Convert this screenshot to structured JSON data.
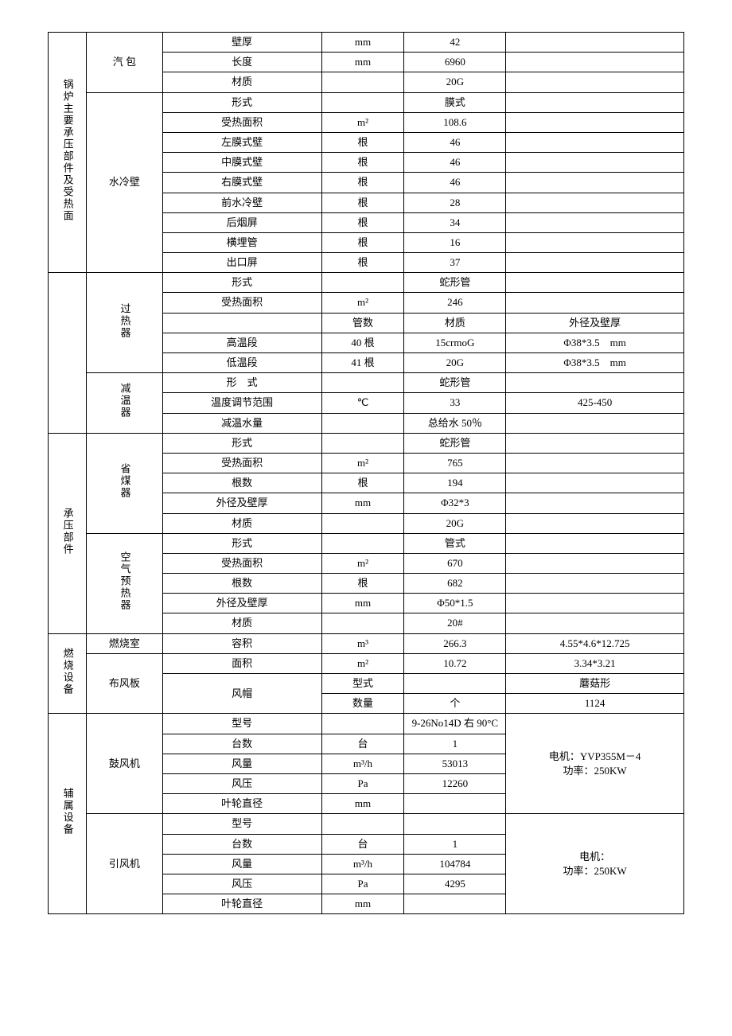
{
  "sections": {
    "boiler": "锅炉主要承压部件及受热面",
    "pressure": "承压部件",
    "combustion": "燃烧设备",
    "aux": "辅属设备"
  },
  "groups": {
    "steam_drum": "汽 包",
    "water_wall": "水冷壁",
    "superheater": "过热器",
    "desuperheater": "减温器",
    "economizer": "省煤器",
    "air_preheater": "空气预热器",
    "combustion_chamber": "燃烧室",
    "air_dist": "布风板",
    "blower": "鼓风机",
    "induced": "引风机"
  },
  "rows": {
    "r1": {
      "param": "壁厚",
      "unit": "mm",
      "val": "42",
      "note": ""
    },
    "r2": {
      "param": "长度",
      "unit": "mm",
      "val": "6960",
      "note": ""
    },
    "r3": {
      "param": "材质",
      "unit": "",
      "val": "20G",
      "note": ""
    },
    "r4": {
      "param": "形式",
      "unit": "",
      "val": "膜式",
      "note": ""
    },
    "r5": {
      "param": "受热面积",
      "unit": "m²",
      "val": "108.6",
      "note": ""
    },
    "r6": {
      "param": "左膜式壁",
      "unit": "根",
      "val": "46",
      "note": ""
    },
    "r7": {
      "param": "中膜式壁",
      "unit": "根",
      "val": "46",
      "note": ""
    },
    "r8": {
      "param": "右膜式壁",
      "unit": "根",
      "val": "46",
      "note": ""
    },
    "r9": {
      "param": "前水冷壁",
      "unit": "根",
      "val": "28",
      "note": ""
    },
    "r10": {
      "param": "后烟屏",
      "unit": "根",
      "val": "34",
      "note": ""
    },
    "r11": {
      "param": "横埋管",
      "unit": "根",
      "val": "16",
      "note": ""
    },
    "r12": {
      "param": "出口屏",
      "unit": "根",
      "val": "37",
      "note": ""
    },
    "r13": {
      "param": "形式",
      "unit": "",
      "val": "蛇形管",
      "note": ""
    },
    "r14": {
      "param": "受热面积",
      "unit": "m²",
      "val": "246",
      "note": ""
    },
    "r15": {
      "param": "",
      "unit": "管数",
      "val": "材质",
      "note": "外径及壁厚"
    },
    "r16": {
      "param": "高温段",
      "unit": "40 根",
      "val": "15crmoG",
      "note": "Φ38*3.5　mm"
    },
    "r17": {
      "param": "低温段",
      "unit": "41 根",
      "val": "20G",
      "note": "Φ38*3.5　mm"
    },
    "r18": {
      "param": "形　式",
      "unit": "",
      "val": "蛇形管",
      "note": ""
    },
    "r19": {
      "param": "温度调节范围",
      "unit": "℃",
      "val": "33",
      "note": "425-450"
    },
    "r20": {
      "param": "减温水量",
      "unit": "",
      "val": "总给水 50％",
      "note": ""
    },
    "r21": {
      "param": "形式",
      "unit": "",
      "val": "蛇形管",
      "note": ""
    },
    "r22": {
      "param": "受热面积",
      "unit": "m²",
      "val": "765",
      "note": ""
    },
    "r23": {
      "param": "根数",
      "unit": "根",
      "val": "194",
      "note": ""
    },
    "r24": {
      "param": "外径及壁厚",
      "unit": "mm",
      "val": "Φ32*3",
      "note": ""
    },
    "r25": {
      "param": "材质",
      "unit": "",
      "val": "20G",
      "note": ""
    },
    "r26": {
      "param": "形式",
      "unit": "",
      "val": "管式",
      "note": ""
    },
    "r27": {
      "param": "受热面积",
      "unit": "m²",
      "val": "670",
      "note": ""
    },
    "r28": {
      "param": "根数",
      "unit": "根",
      "val": "682",
      "note": ""
    },
    "r29": {
      "param": "外径及壁厚",
      "unit": "mm",
      "val": "Φ50*1.5",
      "note": ""
    },
    "r30": {
      "param": "材质",
      "unit": "",
      "val": "20#",
      "note": ""
    },
    "r31": {
      "param": "容积",
      "unit": "m³",
      "val": "266.3",
      "note": "4.55*4.6*12.725"
    },
    "r32": {
      "param": "面积",
      "unit": "m²",
      "val": "10.72",
      "note": "3.34*3.21"
    },
    "r33a": {
      "sub": "型式",
      "val": "",
      "note": "蘑菇形"
    },
    "r33b": {
      "sub": "数量",
      "unit": "个",
      "val": "1124"
    },
    "r33": {
      "param": "风帽"
    },
    "r34": {
      "param": "型号",
      "unit": "",
      "val": "9-26No14D 右 90°C",
      "note": ""
    },
    "r35": {
      "param": "台数",
      "unit": "台",
      "val": "1",
      "note": ""
    },
    "r36": {
      "param": "风量",
      "unit": "m³/h",
      "val": "53013",
      "note": ""
    },
    "r37": {
      "param": "风压",
      "unit": "Pa",
      "val": "12260",
      "note": ""
    },
    "r38": {
      "param": "叶轮直径",
      "unit": "mm",
      "val": "",
      "note": ""
    },
    "r39": {
      "param": "型号",
      "unit": "",
      "val": "",
      "note": ""
    },
    "r40": {
      "param": "台数",
      "unit": "台",
      "val": "1",
      "note": ""
    },
    "r41": {
      "param": "风量",
      "unit": "m³/h",
      "val": "104784",
      "note": ""
    },
    "r42": {
      "param": "风压",
      "unit": "Pa",
      "val": "4295",
      "note": ""
    },
    "r43": {
      "param": "叶轮直径",
      "unit": "mm",
      "val": "",
      "note": ""
    }
  },
  "notes": {
    "blower_motor": "电机：YVP355M－4\n功率：250KW",
    "induced_motor": "电机：\n功率：250KW"
  },
  "style": {
    "font_family": "SimSun",
    "font_size_pt": 13,
    "border_color": "#000000",
    "background_color": "#ffffff",
    "text_color": "#000000"
  }
}
